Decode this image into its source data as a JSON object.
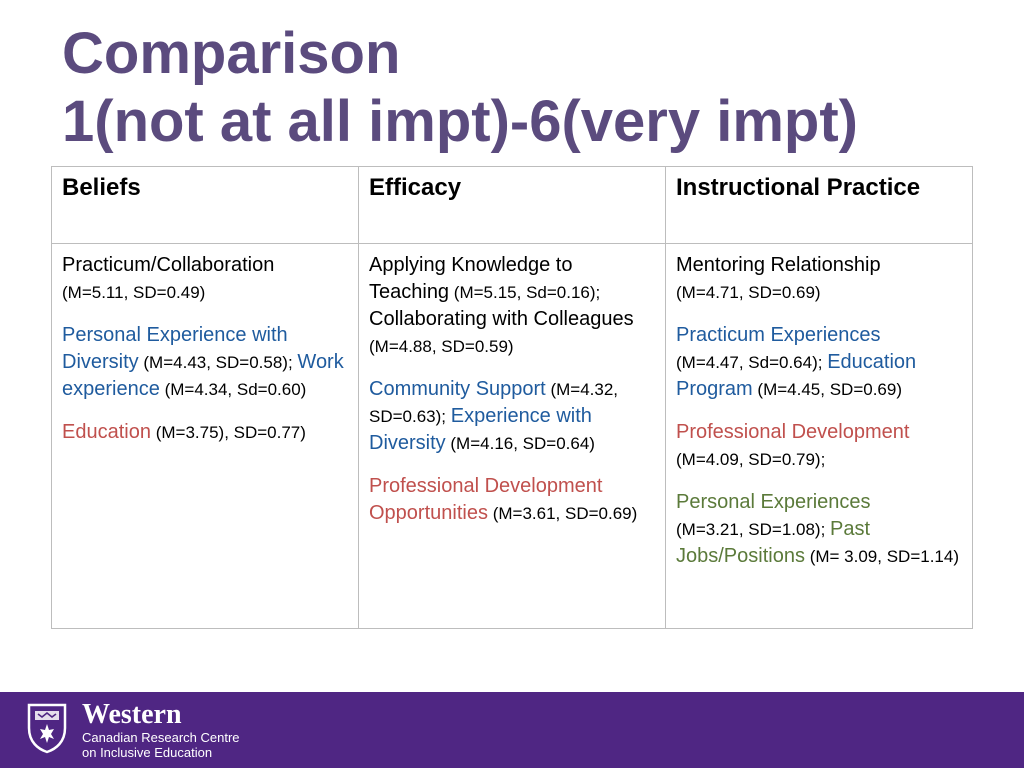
{
  "title": {
    "line1": "Comparison",
    "line2": "1(not at all impt)-6(very impt)"
  },
  "table": {
    "headers": [
      "Beliefs",
      "Efficacy",
      "Instructional Practice"
    ],
    "columns": [
      [
        [
          {
            "text": "Practicum/Collaboration",
            "color": "#000000"
          },
          {
            "text": "(M=5.11, SD=0.49)",
            "stat": true,
            "color": "#000000",
            "block": true
          }
        ],
        [
          {
            "text": "Personal Experience with Diversity",
            "color": "#1f5b9e"
          },
          {
            "text": " (M=4.43, SD=0.58); ",
            "stat": true,
            "color": "#000000"
          },
          {
            "text": "Work experience",
            "color": "#1f5b9e"
          },
          {
            "text": " (M=4.34, Sd=0.60)",
            "stat": true,
            "color": "#000000"
          }
        ],
        [
          {
            "text": "Education",
            "color": "#c0504d"
          },
          {
            "text": " (M=3.75), SD=0.77)",
            "stat": true,
            "color": "#000000"
          }
        ]
      ],
      [
        [
          {
            "text": "Applying Knowledge to Teaching",
            "color": "#000000"
          },
          {
            "text": " (M=5.15, Sd=0.16); ",
            "stat": true,
            "color": "#000000"
          },
          {
            "text": "Collaborating with Colleagues",
            "color": "#000000"
          },
          {
            "text": " (M=4.88, SD=0.59)",
            "stat": true,
            "color": "#000000"
          }
        ],
        [
          {
            "text": "Community Support",
            "color": "#1f5b9e"
          },
          {
            "text": " (M=4.32, SD=0.63); ",
            "stat": true,
            "color": "#000000"
          },
          {
            "text": "Experience with Diversity",
            "color": "#1f5b9e"
          },
          {
            "text": " (M=4.16, SD=0.64)",
            "stat": true,
            "color": "#000000"
          }
        ],
        [
          {
            "text": "Professional Development Opportunities",
            "color": "#c0504d"
          },
          {
            "text": " (M=3.61, SD=0.69)",
            "stat": true,
            "color": "#000000"
          }
        ]
      ],
      [
        [
          {
            "text": "Mentoring Relationship",
            "color": "#000000"
          },
          {
            "text": "(M=4.71, SD=0.69)",
            "stat": true,
            "color": "#000000",
            "block": true
          }
        ],
        [
          {
            "text": "Practicum Experiences",
            "color": "#1f5b9e"
          },
          {
            "text": "(M=4.47, Sd=0.64); ",
            "stat": true,
            "color": "#000000",
            "block": false,
            "newline": true
          },
          {
            "text": "Education Program",
            "color": "#1f5b9e"
          },
          {
            "text": " (M=4.45, SD=0.69)",
            "stat": true,
            "color": "#000000"
          }
        ],
        [
          {
            "text": "Professional Development",
            "color": "#c0504d"
          },
          {
            "text": "(M=4.09, SD=0.79);",
            "stat": true,
            "color": "#000000",
            "block": true
          }
        ],
        [
          {
            "text": "Personal Experiences",
            "color": "#5b7a3a"
          },
          {
            "text": "(M=3.21, SD=1.08); ",
            "stat": true,
            "color": "#000000",
            "newline": true
          },
          {
            "text": "Past Jobs/Positions",
            "color": "#5b7a3a"
          },
          {
            "text": " (M= 3.09, SD=1.14)",
            "stat": true,
            "color": "#000000"
          }
        ]
      ]
    ]
  },
  "footer": {
    "brand": "Western",
    "centre_line1": "Canadian Research Centre",
    "centre_line2": "on Inclusive Education",
    "background": "#4f2683",
    "logo_icon": "western-crest-icon"
  }
}
